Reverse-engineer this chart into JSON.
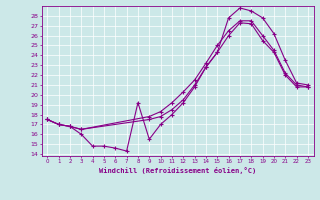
{
  "xlabel": "Windchill (Refroidissement éolien,°C)",
  "bg_color": "#cce8e8",
  "line_color": "#880088",
  "grid_color": "#ffffff",
  "xlim": [
    -0.5,
    23.5
  ],
  "ylim": [
    13.8,
    29.0
  ],
  "xticks": [
    0,
    1,
    2,
    3,
    4,
    5,
    6,
    7,
    8,
    9,
    10,
    11,
    12,
    13,
    14,
    15,
    16,
    17,
    18,
    19,
    20,
    21,
    22,
    23
  ],
  "yticks": [
    14,
    15,
    16,
    17,
    18,
    19,
    20,
    21,
    22,
    23,
    24,
    25,
    26,
    27,
    28
  ],
  "curve1_x": [
    0,
    1,
    2,
    3,
    4,
    5,
    6,
    7,
    8,
    9,
    10,
    11,
    12,
    13,
    14,
    15,
    16,
    17,
    18,
    19,
    20,
    21,
    22,
    23
  ],
  "curve1_y": [
    17.5,
    17.0,
    16.8,
    16.0,
    14.8,
    14.8,
    14.6,
    14.3,
    19.2,
    15.5,
    17.0,
    18.0,
    19.2,
    20.8,
    22.8,
    24.3,
    27.8,
    28.8,
    28.5,
    27.8,
    26.2,
    23.5,
    21.2,
    21.0
  ],
  "curve2_x": [
    0,
    1,
    2,
    3,
    9,
    10,
    11,
    12,
    13,
    14,
    15,
    16,
    17,
    18,
    19,
    20,
    21,
    22,
    23
  ],
  "curve2_y": [
    17.5,
    17.0,
    16.8,
    16.5,
    17.5,
    17.8,
    18.5,
    19.5,
    21.0,
    22.8,
    24.3,
    26.0,
    27.3,
    27.2,
    25.5,
    24.3,
    22.0,
    20.8,
    20.8
  ],
  "curve3_x": [
    0,
    1,
    2,
    3,
    9,
    10,
    11,
    12,
    13,
    14,
    15,
    16,
    17,
    18,
    19,
    20,
    21,
    22,
    23
  ],
  "curve3_y": [
    17.5,
    17.0,
    16.8,
    16.5,
    17.8,
    18.3,
    19.2,
    20.3,
    21.5,
    23.2,
    25.0,
    26.5,
    27.5,
    27.5,
    26.0,
    24.5,
    22.2,
    21.0,
    20.8
  ]
}
